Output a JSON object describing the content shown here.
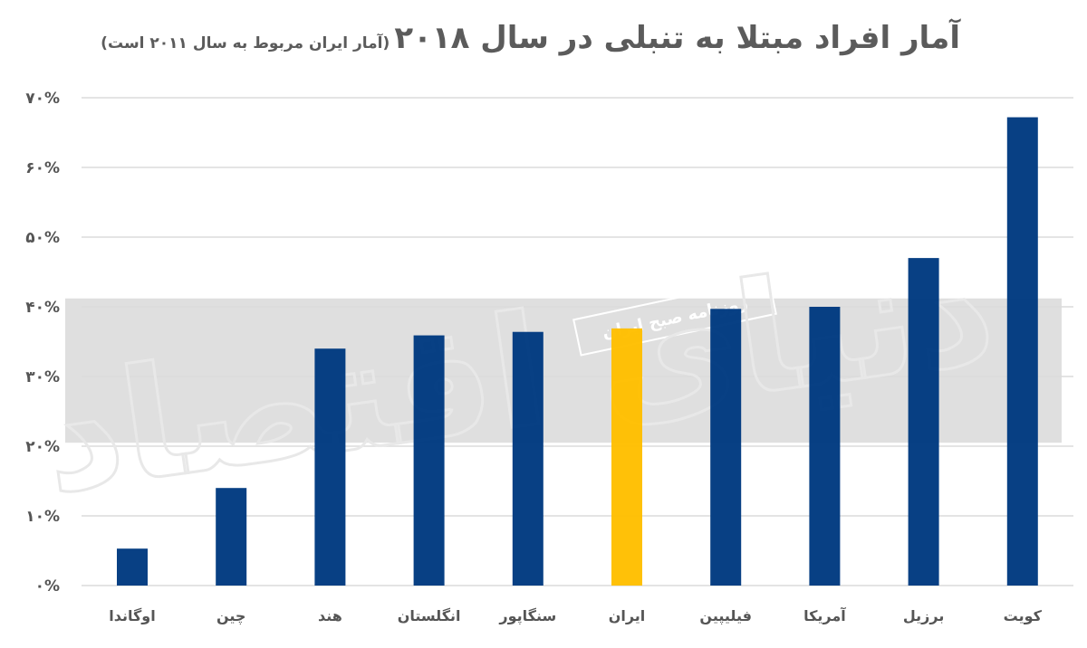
{
  "chart_data": {
    "type": "bar",
    "title": "آمار افراد مبتلا به تنبلی در سال ۲۰۱۸",
    "subtitle": "(آمار ایران مربوط به سال ۲۰۱۱ است)",
    "xlabel": "",
    "ylabel": "",
    "categories": [
      "اوگاندا",
      "چین",
      "هند",
      "انگلستان",
      "سنگاپور",
      "ایران",
      "فیلیپین",
      "آمریکا",
      "برزیل",
      "کویت"
    ],
    "values": [
      5.3,
      14.0,
      34.0,
      35.9,
      36.4,
      36.9,
      39.7,
      40.0,
      47.0,
      67.2
    ],
    "unit": "%",
    "ylim": [
      0,
      70
    ],
    "yticks": [
      0,
      10,
      20,
      30,
      40,
      50,
      60,
      70
    ],
    "ytick_labels": [
      "۰%",
      "۱۰%",
      "۲۰%",
      "۳۰%",
      "۴۰%",
      "۵۰%",
      "۶۰%",
      "۷۰%"
    ],
    "grid": true,
    "legend": "none",
    "colors": {
      "default": "#003a80",
      "highlight": "#ffbf00",
      "highlight_category": "ایران"
    }
  },
  "watermark": {
    "logo_text": "دنیای اقتصاد",
    "band_text": "روزنامه صبح ایران"
  }
}
